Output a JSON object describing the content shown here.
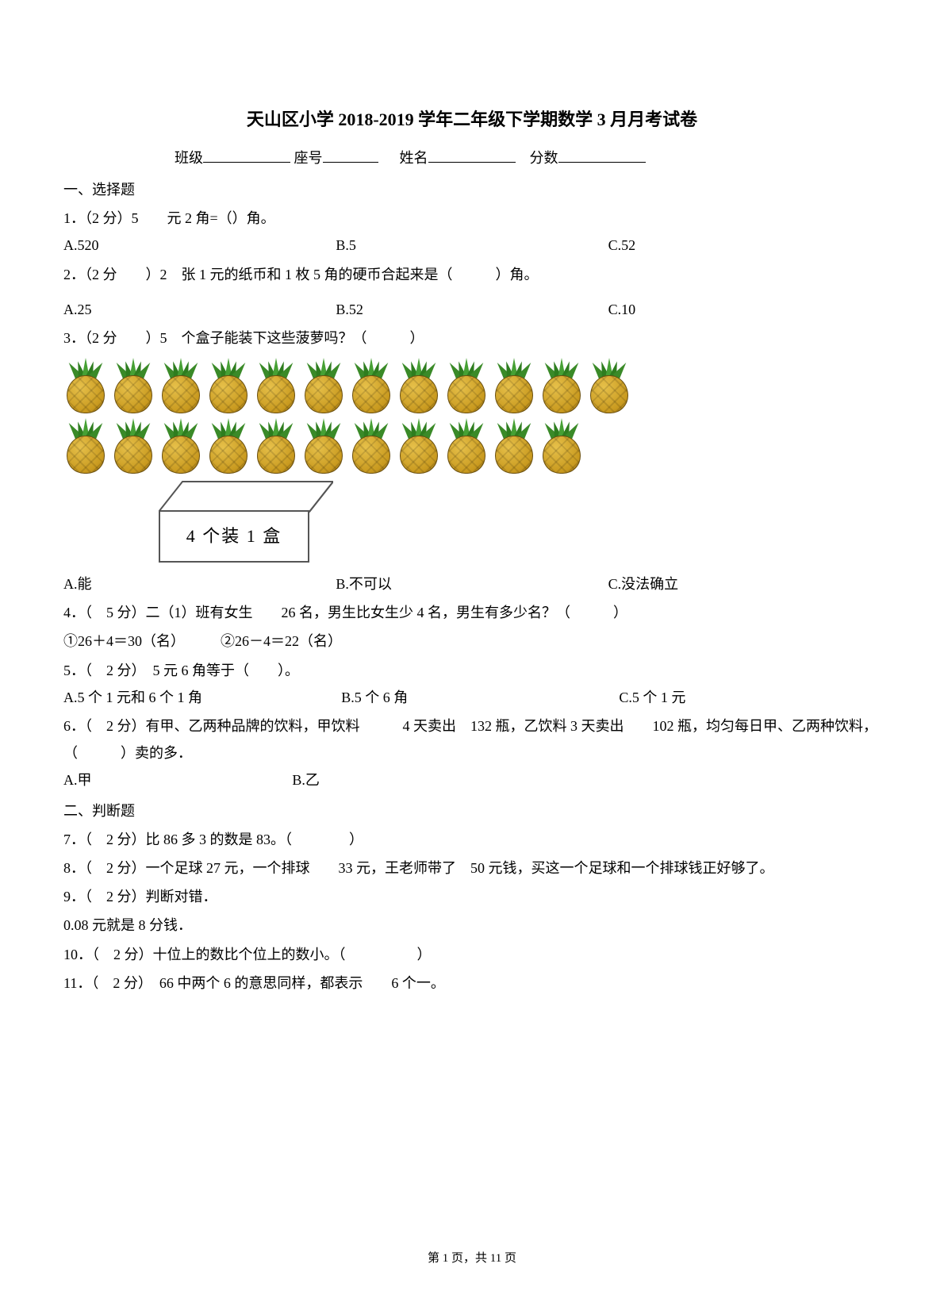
{
  "title": "天山区小学 2018-2019 学年二年级下学期数学  3 月月考试卷",
  "info": {
    "class": "班级",
    "seat": "座号",
    "name": "姓名",
    "score": "分数"
  },
  "sec1": "一、选择题",
  "q1": {
    "stem": "1．（2 分）5　　元 2 角=（）角。",
    "a": "A.520",
    "b": "B.5",
    "c": "C.52"
  },
  "q2": {
    "stem": "2．（2 分　　）2　张 1 元的纸币和 1 枚 5 角的硬币合起来是（　　　）角。",
    "a": "A.25",
    "b": "B.52",
    "c": "C.10"
  },
  "q3": {
    "stem": "3．（2 分　　）5　个盒子能装下这些菠萝吗？（　　　）",
    "boxlabel": "4 个装 1 盒",
    "a": "A.能",
    "b": "B.不可以",
    "c": "C.没法确立"
  },
  "q4": {
    "stem": "4．（　5 分）二（1）班有女生　　26 名，男生比女生少 4 名，男生有多少名？（　　　）",
    "sub": "①26＋4＝30（名）　　　②26－4＝22（名）"
  },
  "q5": {
    "stem": "5．（　2 分）　5 元 6 角等于（　　）。",
    "a": "A.5 个 1 元和 6 个 1 角",
    "b": "B.5 个 6 角",
    "c": "C.5 个 1 元"
  },
  "q6": {
    "stem": "6．（　2 分）有甲、乙两种品牌的饮料，甲饮料　　　4 天卖出　132 瓶，乙饮料 3 天卖出　　102 瓶，均匀每日甲、乙两种饮料，（　　　）卖的多．",
    "a": "A.甲",
    "b": "B.乙"
  },
  "sec2": "二、判断题",
  "q7": "7．（　2 分）比 86 多 3 的数是 83。（　　　　）",
  "q8": "8．（　2 分）一个足球 27 元，一个排球　　33 元，王老师带了　50 元钱，买这一个足球和一个排球钱正好够了。",
  "q9a": "9．（　2 分）判断对错．",
  "q9b": "0.08 元就是 8 分钱．",
  "q10": "10．（　2 分）十位上的数比个位上的数小。（　　　　　）",
  "q11": "11．（　2 分）　66 中两个 6 的意思同样，都表示　　6 个一。",
  "footer": {
    "prefix": "第 ",
    "cur": "1",
    "mid": " 页，共 ",
    "total": "11",
    "suffix": " 页"
  },
  "pineapples": {
    "row1": 12,
    "row2": 11
  },
  "colors": {
    "text": "#000000",
    "bg": "#ffffff",
    "leaf": "#2e7d1f",
    "fruit": "#c99a1f",
    "boxborder": "#555555"
  }
}
